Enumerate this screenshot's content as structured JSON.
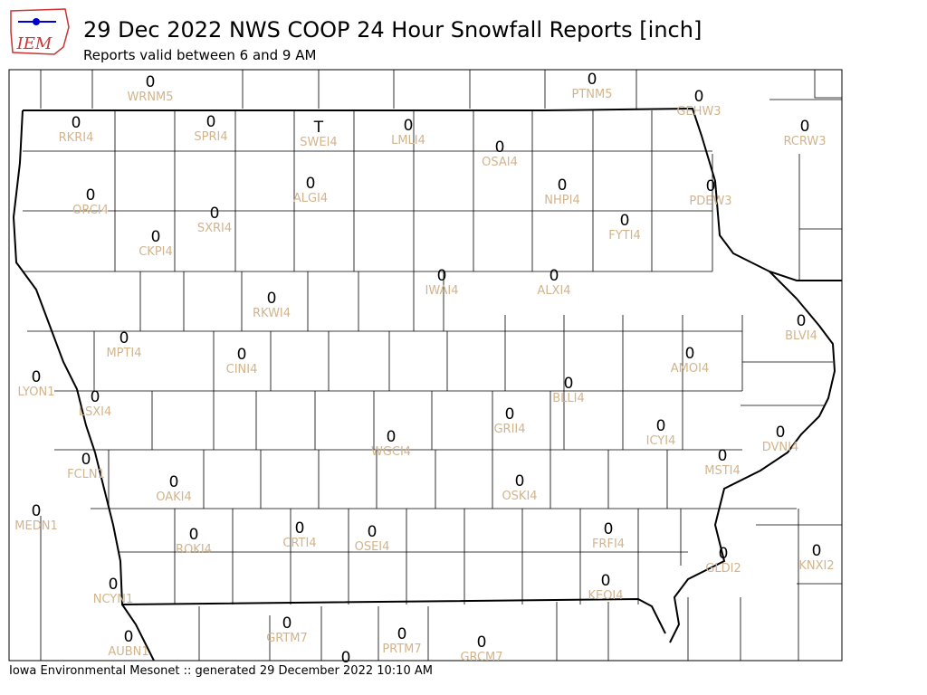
{
  "header": {
    "logo": "IEM",
    "title": "29 Dec 2022 NWS COOP 24 Hour Snowfall Reports [inch]",
    "subtitle": "Reports valid between 6 and 9 AM"
  },
  "stations": [
    {
      "value": "0",
      "name": "WRNM5"
    },
    {
      "value": "0",
      "name": "PTNM5"
    },
    {
      "value": "0",
      "name": "GEHW3"
    },
    {
      "value": "0",
      "name": "RKRI4"
    },
    {
      "value": "0",
      "name": "SPRI4"
    },
    {
      "value": "T",
      "name": "SWEI4"
    },
    {
      "value": "0",
      "name": "LMLI4"
    },
    {
      "value": "0",
      "name": "OSAI4"
    },
    {
      "value": "0",
      "name": "RCRW3"
    },
    {
      "value": "0",
      "name": "ORCI4"
    },
    {
      "value": "0",
      "name": "ALGI4"
    },
    {
      "value": "0",
      "name": "NHPI4"
    },
    {
      "value": "0",
      "name": "PDEW3"
    },
    {
      "value": "0",
      "name": "SXRI4"
    },
    {
      "value": "0",
      "name": "FYTI4"
    },
    {
      "value": "0",
      "name": "CKPI4"
    },
    {
      "value": "0",
      "name": "IWAI4"
    },
    {
      "value": "0",
      "name": "ALXI4"
    },
    {
      "value": "0",
      "name": "RKWI4"
    },
    {
      "value": "0",
      "name": "BLVI4"
    },
    {
      "value": "0",
      "name": "MPTI4"
    },
    {
      "value": "0",
      "name": "CINI4"
    },
    {
      "value": "0",
      "name": "AMOI4"
    },
    {
      "value": "0",
      "name": "LYON1"
    },
    {
      "value": "0",
      "name": "BLLI4"
    },
    {
      "value": "0",
      "name": "LSXI4"
    },
    {
      "value": "0",
      "name": "GRII4"
    },
    {
      "value": "0",
      "name": "ICYI4"
    },
    {
      "value": "0",
      "name": "DVNI4"
    },
    {
      "value": "0",
      "name": "WGCI4"
    },
    {
      "value": "0",
      "name": "MSTI4"
    },
    {
      "value": "0",
      "name": "FCLN1"
    },
    {
      "value": "0",
      "name": "OAKI4"
    },
    {
      "value": "0",
      "name": "OSKI4"
    },
    {
      "value": "0",
      "name": "MEDN1"
    },
    {
      "value": "0",
      "name": "CRTI4"
    },
    {
      "value": "0",
      "name": "OSEI4"
    },
    {
      "value": "0",
      "name": "ROKI4"
    },
    {
      "value": "0",
      "name": "FRFI4"
    },
    {
      "value": "0",
      "name": "KNXI2"
    },
    {
      "value": "0",
      "name": "GLDI2"
    },
    {
      "value": "0",
      "name": "KEOI4"
    },
    {
      "value": "0",
      "name": "NCYN1"
    },
    {
      "value": "0",
      "name": "GRTM7"
    },
    {
      "value": "0",
      "name": "PRTM7"
    },
    {
      "value": "0",
      "name": "AUBN1"
    },
    {
      "value": "0",
      "name": "GRCM7"
    },
    {
      "value": "0"
    }
  ],
  "footer": "Iowa Environmental Mesonet :: generated 29 December 2022 10:10 AM"
}
